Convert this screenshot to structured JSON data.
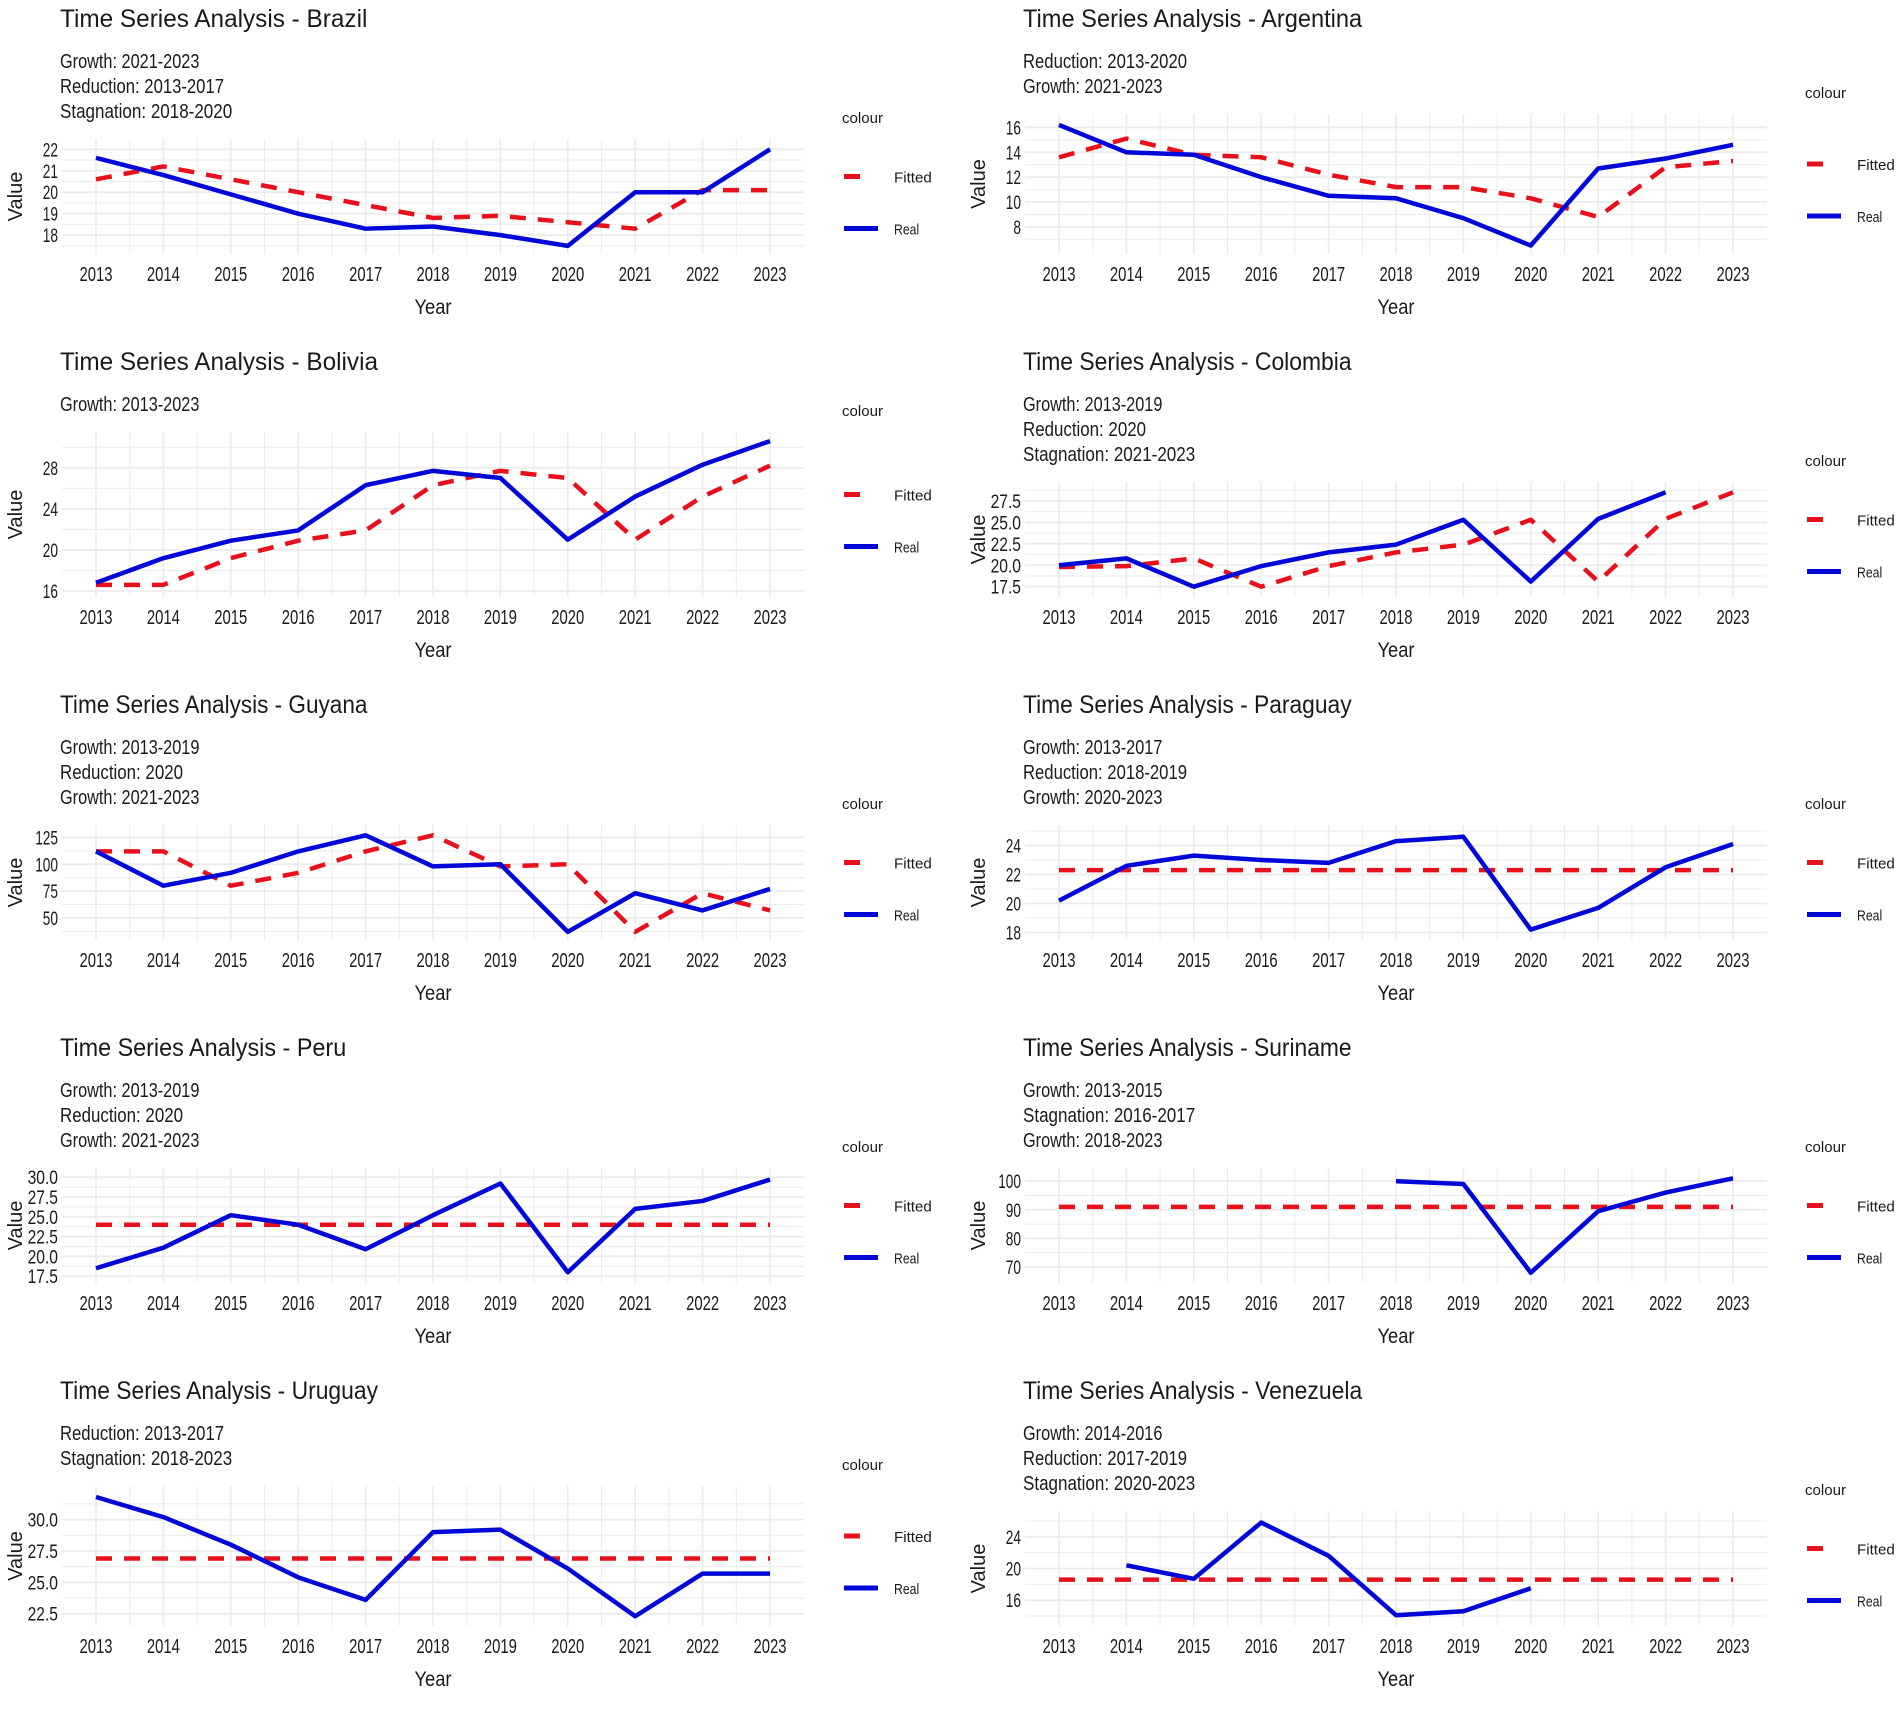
{
  "chart_data": [
    {
      "type": "line",
      "title": "Time Series Analysis - Brazil",
      "subtitle": [
        "Growth: 2021-2023",
        "Reduction: 2013-2017",
        "Stagnation: 2018-2020"
      ],
      "xlabel": "Year",
      "ylabel": "Value",
      "x": [
        2013,
        2014,
        2015,
        2016,
        2017,
        2018,
        2019,
        2020,
        2021,
        2022,
        2023
      ],
      "ylim": [
        17.4,
        22.2
      ],
      "yticks": [
        "18",
        "19",
        "20",
        "21",
        "22"
      ],
      "ytick_values": [
        18,
        19,
        20,
        21,
        22
      ],
      "legend": {
        "title": "colour",
        "position": "right"
      },
      "series": [
        {
          "name": "Fitted",
          "color": "#E8101A",
          "style": "dashed",
          "values": [
            20.6,
            21.2,
            20.6,
            20.0,
            19.4,
            18.8,
            18.9,
            18.6,
            18.3,
            20.1,
            20.1
          ]
        },
        {
          "name": "Real",
          "color": "#0008D8",
          "style": "solid",
          "values": [
            21.6,
            20.8,
            19.9,
            19.0,
            18.3,
            18.4,
            18.0,
            17.5,
            20.0,
            20.0,
            22.0
          ]
        }
      ]
    },
    {
      "type": "line",
      "title": "Time Series Analysis - Argentina",
      "subtitle": [
        "Reduction: 2013-2020",
        "Growth: 2021-2023"
      ],
      "xlabel": "Year",
      "ylabel": "Value",
      "x": [
        2013,
        2014,
        2015,
        2016,
        2017,
        2018,
        2019,
        2020,
        2021,
        2022,
        2023
      ],
      "ylim": [
        6.3,
        16.6
      ],
      "yticks": [
        "8",
        "10",
        "12",
        "14",
        "16"
      ],
      "ytick_values": [
        8,
        10,
        12,
        14,
        16
      ],
      "legend": {
        "title": "colour",
        "position": "right"
      },
      "series": [
        {
          "name": "Fitted",
          "color": "#E8101A",
          "style": "dashed",
          "values": [
            13.6,
            15.1,
            13.8,
            13.6,
            12.2,
            11.2,
            11.2,
            10.3,
            8.8,
            12.8,
            13.3
          ]
        },
        {
          "name": "Real",
          "color": "#0008D8",
          "style": "solid",
          "values": [
            16.2,
            14.0,
            13.8,
            12.0,
            10.5,
            10.3,
            8.7,
            6.5,
            12.7,
            13.5,
            14.6
          ]
        }
      ]
    },
    {
      "type": "line",
      "title": "Time Series Analysis - Bolivia",
      "subtitle": [
        "Growth: 2013-2023"
      ],
      "xlabel": "Year",
      "ylabel": "Value",
      "x": [
        2013,
        2014,
        2015,
        2016,
        2017,
        2018,
        2019,
        2020,
        2021,
        2022,
        2023
      ],
      "ylim": [
        16,
        30.9
      ],
      "yticks": [
        "16",
        "20",
        "24",
        "28"
      ],
      "ytick_values": [
        16,
        20,
        24,
        28
      ],
      "legend": {
        "title": "colour",
        "position": "right"
      },
      "series": [
        {
          "name": "Fitted",
          "color": "#E8101A",
          "style": "dashed",
          "values": [
            16.6,
            16.6,
            19.2,
            20.9,
            21.9,
            26.3,
            27.7,
            27.0,
            21.0,
            25.2,
            28.2
          ]
        },
        {
          "name": "Real",
          "color": "#0008D8",
          "style": "solid",
          "values": [
            16.8,
            19.2,
            20.9,
            21.9,
            26.3,
            27.7,
            27.0,
            21.0,
            25.2,
            28.3,
            30.6
          ]
        }
      ]
    },
    {
      "type": "line",
      "title": "Time Series Analysis - Colombia",
      "subtitle": [
        "Growth: 2013-2019",
        "Reduction: 2020",
        "Stagnation: 2021-2023"
      ],
      "xlabel": "Year",
      "ylabel": "Value",
      "x": [
        2013,
        2014,
        2015,
        2016,
        2017,
        2018,
        2019,
        2020,
        2021,
        2022,
        2023
      ],
      "ylim": [
        17.0,
        29.0
      ],
      "yticks": [
        "17.5",
        "20.0",
        "22.5",
        "25.0",
        "27.5"
      ],
      "ytick_values": [
        17.5,
        20,
        22.5,
        25,
        27.5
      ],
      "legend": {
        "title": "colour",
        "position": "right"
      },
      "series": [
        {
          "name": "Fitted",
          "color": "#E8101A",
          "style": "dashed",
          "values": [
            19.8,
            19.9,
            20.8,
            17.5,
            19.9,
            21.5,
            22.4,
            25.3,
            18.1,
            25.4,
            28.5
          ]
        },
        {
          "name": "Real",
          "color": "#0008D8",
          "style": "solid",
          "values": [
            20.0,
            20.8,
            17.5,
            19.9,
            21.5,
            22.4,
            25.3,
            18.1,
            25.4,
            28.5,
            null
          ]
        }
      ]
    },
    {
      "type": "line",
      "title": "Time Series Analysis - Guyana",
      "subtitle": [
        "Growth: 2013-2019",
        "Reduction: 2020",
        "Growth: 2021-2023"
      ],
      "xlabel": "Year",
      "ylabel": "Value",
      "x": [
        2013,
        2014,
        2015,
        2016,
        2017,
        2018,
        2019,
        2020,
        2021,
        2022,
        2023
      ],
      "ylim": [
        35,
        131
      ],
      "yticks": [
        "50",
        "75",
        "100",
        "125"
      ],
      "ytick_values": [
        50,
        75,
        100,
        125
      ],
      "legend": {
        "title": "colour",
        "position": "right"
      },
      "series": [
        {
          "name": "Fitted",
          "color": "#E8101A",
          "style": "dashed",
          "values": [
            112,
            112,
            80,
            92,
            112,
            127,
            98,
            100,
            37,
            73,
            57
          ]
        },
        {
          "name": "Real",
          "color": "#0008D8",
          "style": "solid",
          "values": [
            112,
            80,
            92,
            112,
            127,
            98,
            100,
            37,
            73,
            57,
            77
          ]
        }
      ]
    },
    {
      "type": "line",
      "title": "Time Series Analysis - Paraguay",
      "subtitle": [
        "Growth: 2013-2017",
        "Reduction: 2018-2019",
        "Growth: 2020-2023"
      ],
      "xlabel": "Year",
      "ylabel": "Value",
      "x": [
        2013,
        2014,
        2015,
        2016,
        2017,
        2018,
        2019,
        2020,
        2021,
        2022,
        2023
      ],
      "ylim": [
        17.9,
        25.0
      ],
      "yticks": [
        "18",
        "20",
        "22",
        "24"
      ],
      "ytick_values": [
        18,
        20,
        22,
        24
      ],
      "legend": {
        "title": "colour",
        "position": "right"
      },
      "series": [
        {
          "name": "Fitted",
          "color": "#E8101A",
          "style": "dashed",
          "values": [
            22.3,
            22.3,
            22.3,
            22.3,
            22.3,
            22.3,
            22.3,
            22.3,
            22.3,
            22.3,
            22.3
          ]
        },
        {
          "name": "Real",
          "color": "#0008D8",
          "style": "solid",
          "values": [
            20.2,
            22.6,
            23.3,
            23.0,
            22.8,
            24.3,
            24.6,
            18.2,
            19.7,
            22.5,
            24.1
          ]
        }
      ]
    },
    {
      "type": "line",
      "title": "Time Series Analysis - Peru",
      "subtitle": [
        "Growth: 2013-2019",
        "Reduction: 2020",
        "Growth: 2021-2023"
      ],
      "xlabel": "Year",
      "ylabel": "Value",
      "x": [
        2013,
        2014,
        2015,
        2016,
        2017,
        2018,
        2019,
        2020,
        2021,
        2022,
        2023
      ],
      "ylim": [
        17.4,
        30.4
      ],
      "yticks": [
        "17.5",
        "20.0",
        "22.5",
        "25.0",
        "27.5",
        "30.0"
      ],
      "ytick_values": [
        17.5,
        20,
        22.5,
        25,
        27.5,
        30
      ],
      "legend": {
        "title": "colour",
        "position": "right"
      },
      "series": [
        {
          "name": "Fitted",
          "color": "#E8101A",
          "style": "dashed",
          "values": [
            24.0,
            24.0,
            24.0,
            24.0,
            24.0,
            24.0,
            24.0,
            24.0,
            24.0,
            24.0,
            24.0
          ]
        },
        {
          "name": "Real",
          "color": "#0008D8",
          "style": "solid",
          "values": [
            18.5,
            21.1,
            25.2,
            24.0,
            20.9,
            25.2,
            29.2,
            18.0,
            26.0,
            27.0,
            29.7
          ]
        }
      ]
    },
    {
      "type": "line",
      "title": "Time Series Analysis - Suriname",
      "subtitle": [
        "Growth: 2013-2015",
        "Stagnation: 2016-2017",
        "Growth: 2018-2023"
      ],
      "xlabel": "Year",
      "ylabel": "Value",
      "x": [
        2013,
        2014,
        2015,
        2016,
        2017,
        2018,
        2019,
        2020,
        2021,
        2022,
        2023
      ],
      "ylim": [
        66.5,
        102.5
      ],
      "yticks": [
        "70",
        "80",
        "90",
        "100"
      ],
      "ytick_values": [
        70,
        80,
        90,
        100
      ],
      "legend": {
        "title": "colour",
        "position": "right"
      },
      "series": [
        {
          "name": "Fitted",
          "color": "#E8101A",
          "style": "dashed",
          "values": [
            91,
            91,
            91,
            91,
            91,
            91,
            91,
            91,
            91,
            91,
            91
          ]
        },
        {
          "name": "Real",
          "color": "#0008D8",
          "style": "solid",
          "values": [
            null,
            null,
            null,
            null,
            null,
            100,
            99,
            68,
            89.5,
            96,
            101
          ]
        }
      ]
    },
    {
      "type": "line",
      "title": "Time Series Analysis - Uruguay",
      "subtitle": [
        "Reduction: 2013-2017",
        "Stagnation: 2018-2023"
      ],
      "xlabel": "Year",
      "ylabel": "Value",
      "x": [
        2013,
        2014,
        2015,
        2016,
        2017,
        2018,
        2019,
        2020,
        2021,
        2022,
        2023
      ],
      "ylim": [
        22.0,
        32.2
      ],
      "yticks": [
        "22.5",
        "25.0",
        "27.5",
        "30.0"
      ],
      "ytick_values": [
        22.5,
        25,
        27.5,
        30
      ],
      "legend": {
        "title": "colour",
        "position": "right"
      },
      "series": [
        {
          "name": "Fitted",
          "color": "#E8101A",
          "style": "dashed",
          "values": [
            26.9,
            26.9,
            26.9,
            26.9,
            26.9,
            26.9,
            26.9,
            26.9,
            26.9,
            26.9,
            26.9
          ]
        },
        {
          "name": "Real",
          "color": "#0008D8",
          "style": "solid",
          "values": [
            31.8,
            30.2,
            28.0,
            25.4,
            23.6,
            29.0,
            29.2,
            26.1,
            22.3,
            25.7,
            25.7
          ]
        }
      ]
    },
    {
      "type": "line",
      "title": "Time Series Analysis - Venezuela",
      "subtitle": [
        "Growth: 2014-2016",
        "Reduction: 2017-2019",
        "Stagnation: 2020-2023"
      ],
      "xlabel": "Year",
      "ylabel": "Value",
      "x": [
        2013,
        2014,
        2015,
        2016,
        2017,
        2018,
        2019,
        2020,
        2021,
        2022,
        2023
      ],
      "ylim": [
        13.5,
        26.5
      ],
      "yticks": [
        "16",
        "20",
        "24"
      ],
      "ytick_values": [
        16,
        20,
        24
      ],
      "legend": {
        "title": "colour",
        "position": "right"
      },
      "series": [
        {
          "name": "Fitted",
          "color": "#E8101A",
          "style": "dashed",
          "values": [
            18.6,
            18.6,
            18.6,
            18.6,
            18.6,
            18.6,
            18.6,
            18.6,
            18.6,
            18.6,
            18.6
          ]
        },
        {
          "name": "Real",
          "color": "#0008D8",
          "style": "solid",
          "values": [
            null,
            20.4,
            18.7,
            25.8,
            21.6,
            14.1,
            14.6,
            17.5,
            null,
            null,
            null
          ]
        }
      ]
    }
  ]
}
